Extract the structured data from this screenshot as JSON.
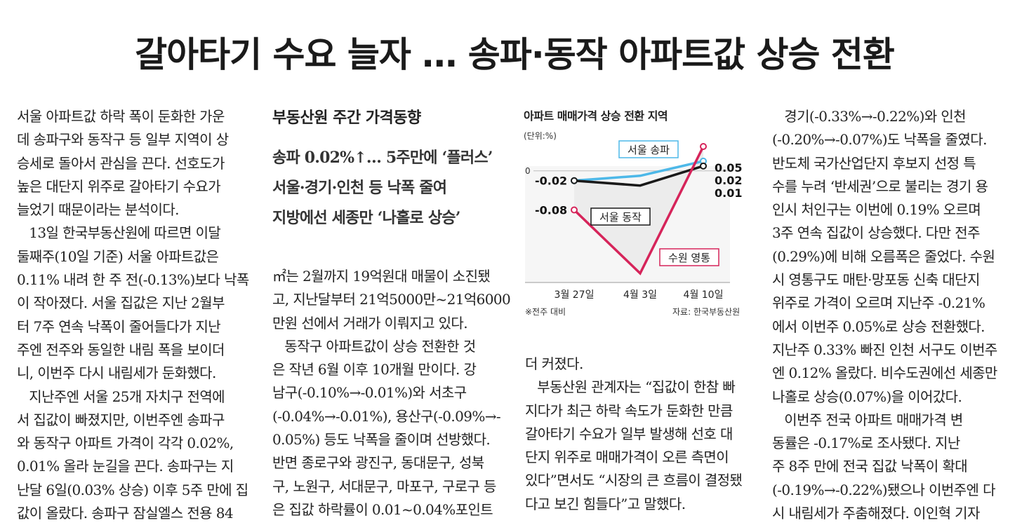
{
  "headline": "갈아타기 수요 늘자 … 송파·동작 아파트값 상승 전환",
  "sidebar": {
    "title": "부동산원 주간 가격동향",
    "lines": [
      "송파 0.02%↑… 5주만에 ‘플러스’",
      "서울·경기·인천 등 낙폭 줄여",
      "지방에선 세종만 ‘나홀로 상승’"
    ]
  },
  "columns": {
    "col1": [
      "서울 아파트값 하락 폭이 둔화한 가운",
      "데 송파구와 동작구 등 일부 지역이 상",
      "승세로 돌아서 관심을 끈다. 선호도가",
      "높은 대단지 위주로 갈아타기 수요가",
      "늘었기 때문이라는 분석이다.",
      "  13일 한국부동산원에 따르면 이달",
      "둘째주(10일 기준) 서울 아파트값은",
      "0.11% 내려 한 주 전(-0.13%)보다 낙폭",
      "이 작아졌다. 서울 집값은 지난 2월부",
      "터 7주 연속 낙폭이 줄어들다가 지난",
      "주엔 전주와 동일한 내림 폭을 보이더",
      "니, 이번주 다시 내림세가 둔화했다.",
      "  지난주엔 서울 25개 자치구 전역에",
      "서 집값이 빠졌지만, 이번주엔 송파구",
      "와 동작구 아파트 가격이 각각 0.02%,",
      "0.01% 올라 눈길을 끈다. 송파구는 지",
      "난달 6일(0.03% 상승) 이후 5주 만에 집",
      "값이 올랐다. 송파구 잠실엘스 전용 84"
    ],
    "col2": [
      "㎡는 2월까지 19억원대 매물이 소진됐",
      "고, 지난달부터 21억5000만~21억6000",
      "만원 선에서 거래가 이뤄지고 있다.",
      "  동작구 아파트값이 상승 전환한 것",
      "은 작년 6월 이후 10개월 만이다. 강",
      "남구(-0.10%→-0.01%)와 서초구",
      "(-0.04%→-0.01%), 용산구(-0.09%→-",
      "0.05%) 등도 낙폭을 줄이며 선방했다.",
      "반면 종로구와 광진구, 동대문구, 성북",
      "구, 노원구, 서대문구, 마포구, 구로구 등",
      "은 집값 하락률이 0.01~0.04%포인트"
    ],
    "col3": [
      "더 커졌다.",
      "  부동산원 관계자는 “집값이 한참 빠",
      "지다가 최근 하락 속도가 둔화한 만큼",
      "갈아타기 수요가 일부 발생해 선호 대",
      "단지 위주로 매매가격이 오른 측면이",
      "있다”면서도 “시장의 큰 흐름이 결정됐",
      "다고 보긴 힘들다”고 말했다."
    ],
    "col4": [
      "  경기(-0.33%→-0.22%)와 인천",
      "(-0.20%→-0.07%)도 낙폭을 줄였다.",
      "반도체 국가산업단지 후보지 선정 특",
      "수를 누려 ‘반세권’으로 불리는 경기 용",
      "인시 처인구는 이번에 0.19% 오르며",
      "3주 연속 집값이 상승했다. 다만 전주",
      "(0.29%)에 비해 오름폭은 줄었다. 수원",
      "시 영통구도 매탄·망포동 신축 대단지",
      "위주로 가격이 오르며 지난주 -0.21%",
      "에서 이번주 0.05%로 상승 전환했다.",
      "지난주 0.33% 빠진 인천 서구도 이번주",
      "엔 0.12% 올랐다. 비수도권에선 세종만",
      "나홀로 상승(0.07%)을 이어갔다.",
      "  이번주 전국 아파트 매매가격 변",
      "동률은 -0.17%로 조사됐다. 지난",
      "주 8주 만에 전국 집값 낙폭이 확대",
      "(-0.19%→-0.22%)됐으나 이번주엔 다",
      "시 내림세가 주춤해졌다.    이인혁 기자"
    ]
  },
  "chart_data": {
    "type": "line",
    "title": "아파트 매매가격 상승 전환 지역",
    "unit": "(단위:%)",
    "categories": [
      "3월 27일",
      "4월 3일",
      "4월 10일"
    ],
    "series": [
      {
        "name": "서울 송파",
        "values": [
          -0.02,
          -0.01,
          0.02
        ],
        "color": "#4db8e8",
        "end_label": "0.02",
        "start_label": "-0.02"
      },
      {
        "name": "서울 동작",
        "values": [
          -0.02,
          -0.03,
          0.01
        ],
        "color": "#1a1a1a",
        "end_label": "0.01",
        "start_label": ""
      },
      {
        "name": "수원 영통",
        "values": [
          -0.08,
          -0.21,
          0.05
        ],
        "color": "#d6245a",
        "end_label": "0.05",
        "start_label": "-0.08"
      }
    ],
    "zero_label": "0",
    "ylim": [
      -0.21,
      0.05
    ],
    "fill_between": "#ececec",
    "note": "※전주 대비",
    "source": "자료: 한국부동산원"
  }
}
